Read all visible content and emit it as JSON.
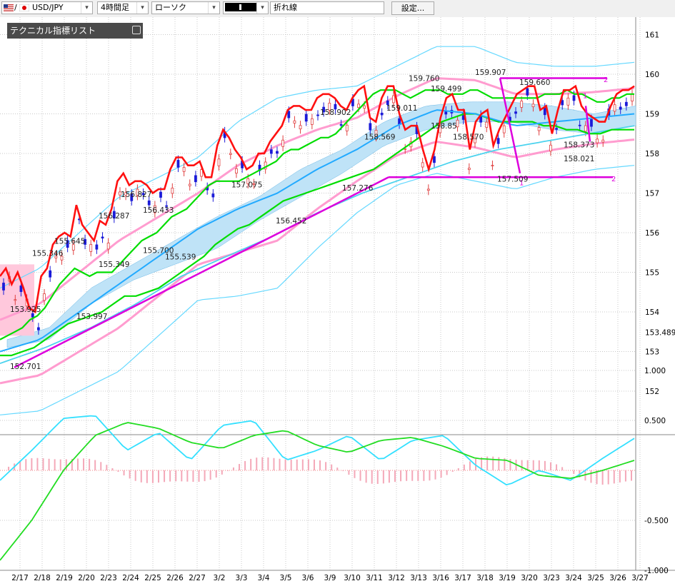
{
  "toolbar": {
    "symbol": "USD/JPY",
    "timeframe": "4時間足",
    "chart_style": "ローソク",
    "color_box": "",
    "line_type": "折れ線",
    "settings_label": "設定..."
  },
  "indicator_panel": {
    "title": "テクニカル指標リスト"
  },
  "colors": {
    "ichimoku_line": "#ff1010",
    "bollinger_outer": "#66d9ff",
    "bollinger_inner": "#ff9ccf",
    "moving_average_green": "#00dd00",
    "moving_average_blue": "#22aaff",
    "trendline": "#dd00dd",
    "cloud": "#bfe3f7",
    "cloud_bear": "#ffc8dc",
    "candle_up": "#e04040",
    "candle_down": "#1b1bd8"
  },
  "chart_data": {
    "type": "line",
    "main_panel": {
      "y_ticks": [
        "161",
        "160",
        "159",
        "158",
        "157",
        "156",
        "155",
        "154",
        "153",
        "152"
      ],
      "current_price": "153.489",
      "price_labels": [
        {
          "text": "152.701",
          "x": "2/17",
          "value": 152.701
        },
        {
          "text": "153.925",
          "x": "2/17",
          "value": 153.925
        },
        {
          "text": "155.346",
          "x": "2/18",
          "value": 155.346
        },
        {
          "text": "155.645",
          "x": "2/19",
          "value": 155.645
        },
        {
          "text": "153.997",
          "x": "2/20",
          "value": 153.997
        },
        {
          "text": "155.349",
          "x": "2/23",
          "value": 155.349
        },
        {
          "text": "156.287",
          "x": "2/23",
          "value": 156.287
        },
        {
          "text": "156.827",
          "x": "2/24",
          "value": 156.827
        },
        {
          "text": "155.700",
          "x": "2/25",
          "value": 155.7
        },
        {
          "text": "156.433",
          "x": "2/25",
          "value": 156.433
        },
        {
          "text": "155.539",
          "x": "2/26",
          "value": 155.539
        },
        {
          "text": "157.075",
          "x": "3/3",
          "value": 157.075
        },
        {
          "text": "156.452",
          "x": "3/5",
          "value": 156.452
        },
        {
          "text": "158.902",
          "x": "3/9",
          "value": 158.902
        },
        {
          "text": "157.276",
          "x": "3/10",
          "value": 157.276
        },
        {
          "text": "158.569",
          "x": "3/11",
          "value": 158.569
        },
        {
          "text": "159.011",
          "x": "3/12",
          "value": 159.011
        },
        {
          "text": "159.760",
          "x": "3/13",
          "value": 159.76
        },
        {
          "text": "159.499",
          "x": "3/16",
          "value": 159.499
        },
        {
          "text": "158.85",
          "x": "3/16",
          "value": 158.85
        },
        {
          "text": "158.570",
          "x": "3/17",
          "value": 158.57
        },
        {
          "text": "159.907",
          "x": "3/18",
          "value": 159.907
        },
        {
          "text": "157.509",
          "x": "3/19",
          "value": 157.509
        },
        {
          "text": "159.660",
          "x": "3/20",
          "value": 159.66
        },
        {
          "text": "158.021",
          "x": "3/24",
          "value": 158.021
        },
        {
          "text": "158.373",
          "x": "3/24",
          "value": 158.373
        }
      ],
      "markers": [
        "1",
        "2",
        "1",
        "2"
      ]
    },
    "sub_panel": {
      "y_ticks": [
        "1.000",
        "0.500",
        "-0.500",
        "-1.000"
      ]
    },
    "x_ticks": [
      "2/17",
      "2/18",
      "2/19",
      "2/20",
      "2/23",
      "2/24",
      "2/25",
      "2/26",
      "2/27",
      "3/2",
      "3/3",
      "3/4",
      "3/5",
      "3/6",
      "3/9",
      "3/10",
      "3/11",
      "3/12",
      "3/13",
      "3/16",
      "3/17",
      "3/18",
      "3/19",
      "3/20",
      "3/23",
      "3/24",
      "3/25",
      "3/26",
      "3/27"
    ],
    "series": [
      {
        "key": "conversion_line",
        "values": [
          154.9,
          155.1,
          154.7,
          155.0,
          154.6,
          154.1,
          154.0,
          154.9,
          155.1,
          155.7,
          155.9,
          156.0,
          155.9,
          156.7,
          156.2,
          156.0,
          155.8,
          156.3,
          156.2,
          156.6,
          157.3,
          157.5,
          157.2,
          157.3,
          157.3,
          157.2,
          157.0,
          157.1,
          157.1,
          157.6,
          157.9,
          157.9,
          157.7,
          157.7,
          157.8,
          157.4,
          157.4,
          158.2,
          158.6,
          158.4,
          158.1,
          157.9,
          157.6,
          157.7,
          158.0,
          158.0,
          158.3,
          158.5,
          158.7,
          159.1,
          159.2,
          159.2,
          159.1,
          159.1,
          159.4,
          159.5,
          159.5,
          159.4,
          159.2,
          159.1,
          159.4,
          159.6,
          159.7,
          158.9,
          158.8,
          159.4,
          159.7,
          159.7,
          159.0,
          158.6,
          158.7,
          158.7,
          158.1,
          157.6,
          158.1,
          158.9,
          159.4,
          159.5,
          159.1,
          159.1,
          158.1,
          158.8,
          159.0,
          159.1,
          158.2,
          158.6,
          158.9,
          159.2,
          159.5,
          159.6,
          159.7,
          159.7,
          159.1,
          159.2,
          158.5,
          159.1,
          159.6,
          159.6,
          159.7,
          159.2,
          159.0,
          158.9,
          158.8,
          158.8,
          159.2,
          159.5,
          159.6,
          159.6,
          159.7
        ]
      },
      {
        "key": "ma_green_upper",
        "values": [
          153.3,
          153.4,
          153.5,
          153.6,
          153.8,
          153.9,
          154.1,
          154.4,
          154.7,
          154.9,
          155.1,
          155.0,
          154.9,
          155.0,
          155.0,
          155.0,
          155.2,
          155.4,
          155.6,
          155.8,
          155.9,
          156.0,
          156.2,
          156.4,
          156.5,
          156.6,
          156.8,
          157.0,
          157.2,
          157.3,
          157.3,
          157.3,
          157.3,
          157.4,
          157.5,
          157.6,
          157.7,
          157.8,
          158.0,
          158.1,
          158.1,
          158.2,
          158.3,
          158.4,
          158.4,
          158.5,
          158.7,
          158.9,
          159.1,
          159.3,
          159.5,
          159.6,
          159.6,
          159.6,
          159.5,
          159.4,
          159.5,
          159.6,
          159.6,
          159.6,
          159.5,
          159.5,
          159.5,
          159.6,
          159.6,
          159.5,
          159.4,
          159.4,
          159.4,
          159.4,
          159.4,
          159.4,
          159.4,
          159.5,
          159.5,
          159.5,
          159.6,
          159.5,
          159.5,
          159.4,
          159.3,
          159.3,
          159.4,
          159.4,
          159.5,
          159.5
        ]
      },
      {
        "key": "ma_green_lower",
        "values": [
          152.9,
          152.9,
          153.0,
          153.1,
          153.3,
          153.5,
          153.7,
          153.8,
          153.9,
          154.0,
          154.2,
          154.4,
          154.4,
          154.5,
          154.6,
          154.8,
          155.0,
          155.2,
          155.4,
          155.7,
          155.9,
          156.1,
          156.2,
          156.4,
          156.6,
          156.8,
          156.9,
          157.0,
          157.1,
          157.2,
          157.3,
          157.4,
          157.5,
          157.6,
          157.8,
          158.0,
          158.2,
          158.4,
          158.6,
          158.8,
          158.9,
          159.0,
          159.0,
          158.9,
          158.8,
          158.8,
          158.8,
          158.8,
          158.7,
          158.7,
          158.6,
          158.6,
          158.5,
          158.5,
          158.6,
          158.6,
          158.6
        ]
      }
    ]
  }
}
